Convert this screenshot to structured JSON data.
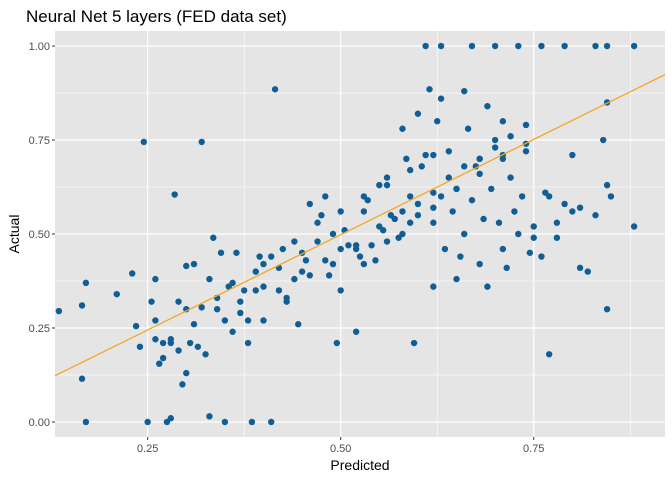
{
  "chart_data": {
    "type": "scatter",
    "title": "Neural Net 5 layers (FED data set)",
    "xlabel": "Predicted",
    "ylabel": "Actual",
    "xlim": [
      0.13,
      0.92
    ],
    "ylim": [
      -0.04,
      1.04
    ],
    "x_ticks": [
      0.25,
      0.5,
      0.75
    ],
    "x_tick_labels": [
      "0.25",
      "0.50",
      "0.75"
    ],
    "y_ticks": [
      0,
      0.25,
      0.5,
      0.75,
      1
    ],
    "y_tick_labels": [
      "0.00",
      "0.25",
      "0.50",
      "0.75",
      "1.00"
    ],
    "grid": true,
    "legend": "none",
    "colors": {
      "points": "#0f5f96",
      "fit_line": "#f5a623",
      "panel_bg": "#e5e5e5",
      "grid": "#ffffff"
    },
    "fit_line": {
      "x": [
        0.13,
        0.92
      ],
      "y": [
        0.123,
        0.924
      ]
    },
    "series": [
      {
        "x": [
          0.135,
          0.165,
          0.17,
          0.17,
          0.165,
          0.21,
          0.23,
          0.235,
          0.245,
          0.24,
          0.25,
          0.255,
          0.26,
          0.26,
          0.265,
          0.27,
          0.275,
          0.28,
          0.28,
          0.285,
          0.29,
          0.295,
          0.3,
          0.3,
          0.305,
          0.31,
          0.315,
          0.32,
          0.32,
          0.325,
          0.33,
          0.335,
          0.34,
          0.345,
          0.35,
          0.355,
          0.36,
          0.365,
          0.37,
          0.375,
          0.38,
          0.385,
          0.39,
          0.395,
          0.4,
          0.41,
          0.415,
          0.42,
          0.425,
          0.43,
          0.44,
          0.445,
          0.45,
          0.455,
          0.46,
          0.47,
          0.475,
          0.48,
          0.485,
          0.49,
          0.495,
          0.5,
          0.505,
          0.51,
          0.52,
          0.525,
          0.53,
          0.535,
          0.54,
          0.545,
          0.55,
          0.555,
          0.56,
          0.565,
          0.57,
          0.575,
          0.58,
          0.585,
          0.59,
          0.595,
          0.6,
          0.605,
          0.61,
          0.615,
          0.62,
          0.625,
          0.63,
          0.635,
          0.64,
          0.645,
          0.65,
          0.655,
          0.66,
          0.665,
          0.67,
          0.675,
          0.68,
          0.685,
          0.69,
          0.695,
          0.7,
          0.705,
          0.71,
          0.715,
          0.72,
          0.725,
          0.73,
          0.735,
          0.74,
          0.745,
          0.75,
          0.76,
          0.765,
          0.77,
          0.78,
          0.79,
          0.8,
          0.81,
          0.82,
          0.83,
          0.84,
          0.845,
          0.845,
          0.85,
          0.88,
          0.88,
          0.45,
          0.48,
          0.52,
          0.55,
          0.58,
          0.6,
          0.62,
          0.64,
          0.66,
          0.68,
          0.7,
          0.72,
          0.74,
          0.5,
          0.53,
          0.56,
          0.59,
          0.62,
          0.65,
          0.68,
          0.71,
          0.74,
          0.77,
          0.8,
          0.38,
          0.4,
          0.42,
          0.35,
          0.33,
          0.3,
          0.28,
          0.26,
          0.58,
          0.6,
          0.63,
          0.66,
          0.69,
          0.71,
          0.61,
          0.63,
          0.67,
          0.7,
          0.73,
          0.76,
          0.79,
          0.83,
          0.845,
          0.62,
          0.65,
          0.68,
          0.71,
          0.75,
          0.78,
          0.81,
          0.845,
          0.4,
          0.43,
          0.46,
          0.49,
          0.52,
          0.36,
          0.34,
          0.31,
          0.29,
          0.27,
          0.37,
          0.39,
          0.41,
          0.44,
          0.47,
          0.5,
          0.53,
          0.56,
          0.59,
          0.62
        ],
        "y": [
          0.295,
          0.115,
          0.0,
          0.37,
          0.31,
          0.34,
          0.395,
          0.255,
          0.745,
          0.2,
          0.0,
          0.32,
          0.27,
          0.38,
          0.155,
          0.17,
          0.0,
          0.01,
          0.21,
          0.605,
          0.32,
          0.1,
          0.13,
          0.415,
          0.21,
          0.42,
          0.2,
          0.745,
          0.305,
          0.18,
          0.015,
          0.49,
          0.33,
          0.45,
          0.0,
          0.36,
          0.37,
          0.45,
          0.29,
          0.35,
          0.21,
          0.0,
          0.35,
          0.44,
          0.36,
          0.0,
          0.885,
          0.41,
          0.46,
          0.32,
          0.38,
          0.26,
          0.45,
          0.43,
          0.58,
          0.48,
          0.55,
          0.6,
          0.39,
          0.5,
          0.21,
          0.46,
          0.51,
          0.47,
          0.24,
          0.44,
          0.56,
          0.59,
          0.47,
          0.43,
          0.63,
          0.51,
          0.65,
          0.55,
          0.54,
          0.49,
          0.5,
          0.7,
          0.6,
          0.21,
          0.55,
          0.68,
          0.71,
          0.885,
          0.53,
          0.8,
          0.6,
          0.46,
          0.72,
          0.56,
          0.62,
          0.44,
          0.5,
          0.78,
          0.59,
          0.68,
          0.7,
          0.54,
          0.36,
          0.62,
          0.75,
          0.53,
          0.71,
          0.41,
          0.65,
          0.56,
          0.5,
          0.6,
          0.74,
          0.45,
          0.52,
          0.44,
          0.61,
          0.18,
          0.49,
          0.58,
          0.71,
          0.41,
          0.4,
          0.55,
          0.75,
          0.85,
          0.3,
          0.6,
          0.52,
          1.0,
          0.4,
          0.43,
          0.47,
          0.52,
          0.56,
          0.58,
          0.61,
          0.65,
          0.68,
          0.7,
          0.73,
          0.76,
          0.79,
          0.35,
          0.42,
          0.48,
          0.53,
          0.57,
          0.62,
          0.66,
          0.7,
          0.72,
          0.6,
          0.56,
          0.27,
          0.42,
          0.35,
          0.27,
          0.38,
          0.3,
          0.22,
          0.22,
          0.78,
          0.82,
          0.86,
          0.88,
          0.84,
          0.8,
          1.0,
          1.0,
          1.0,
          1.0,
          1.0,
          1.0,
          1.0,
          1.0,
          1.0,
          0.36,
          0.38,
          0.42,
          0.46,
          0.49,
          0.53,
          0.57,
          0.63,
          0.27,
          0.33,
          0.39,
          0.42,
          0.46,
          0.24,
          0.3,
          0.26,
          0.19,
          0.21,
          0.32,
          0.4,
          0.44,
          0.48,
          0.53,
          0.56,
          0.6,
          0.63,
          0.67,
          0.71
        ]
      }
    ]
  }
}
